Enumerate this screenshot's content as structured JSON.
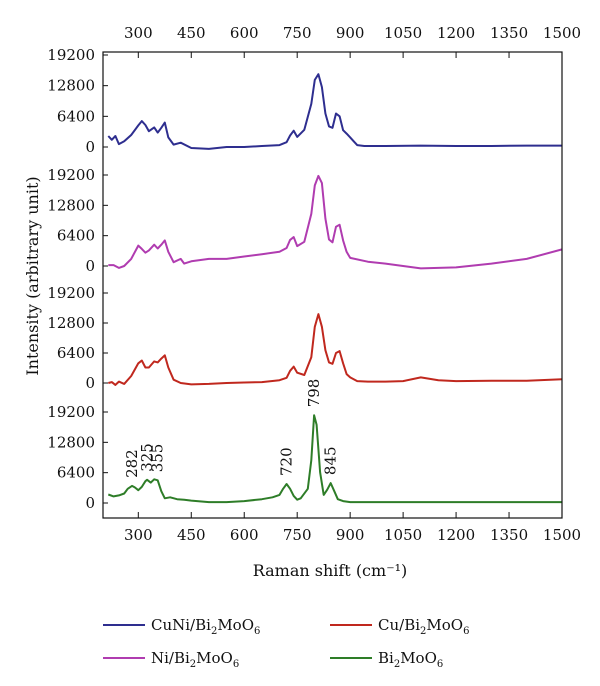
{
  "chart_data": {
    "type": "line",
    "xlabel": "Raman shift (cm⁻¹)",
    "ylabel": "Intensity (arbitrary unit)",
    "x_ticks": [
      300,
      450,
      600,
      750,
      900,
      1050,
      1200,
      1350,
      1500
    ],
    "top_x_ticks": [
      300,
      450,
      600,
      750,
      900,
      1050,
      1200,
      1350,
      1500
    ],
    "xlim": [
      200,
      1500
    ],
    "y_ticks": [
      0,
      6400,
      12800,
      19200
    ],
    "ylim": [
      -1500,
      21000
    ],
    "peak_labels": [
      {
        "x": 282,
        "text": "282"
      },
      {
        "x": 325,
        "text": "325"
      },
      {
        "x": 355,
        "text": "355"
      },
      {
        "x": 720,
        "text": "720"
      },
      {
        "x": 798,
        "text": "798"
      },
      {
        "x": 845,
        "text": "845"
      }
    ],
    "series": [
      {
        "key": "CuNi",
        "name": "CuNi/Bi2MoO6",
        "label_parts": [
          "CuNi/Bi",
          "2",
          "MoO",
          "6"
        ],
        "color": "#2e2e8f",
        "x": [
          215,
          225,
          235,
          245,
          260,
          280,
          300,
          310,
          320,
          330,
          345,
          355,
          365,
          375,
          385,
          400,
          420,
          450,
          500,
          550,
          600,
          650,
          700,
          720,
          730,
          740,
          750,
          770,
          790,
          800,
          810,
          820,
          830,
          840,
          850,
          860,
          870,
          880,
          890,
          900,
          910,
          920,
          940,
          1000,
          1100,
          1200,
          1300,
          1400,
          1500
        ],
        "y": [
          2300,
          1500,
          2300,
          600,
          1200,
          2500,
          4500,
          5400,
          4600,
          3300,
          4100,
          3000,
          4000,
          5100,
          2000,
          500,
          900,
          -200,
          -400,
          0,
          0,
          200,
          400,
          1000,
          2400,
          3400,
          2100,
          3600,
          9000,
          14000,
          15200,
          12500,
          7000,
          4300,
          4000,
          7000,
          6400,
          3500,
          2800,
          2000,
          1200,
          400,
          200,
          200,
          300,
          200,
          200,
          300,
          300
        ]
      },
      {
        "key": "Ni",
        "name": "Ni/Bi2MoO6",
        "label_parts": [
          "Ni/Bi",
          "2",
          "MoO",
          "6"
        ],
        "color": "#b03cb0",
        "x": [
          215,
          230,
          245,
          260,
          280,
          300,
          310,
          320,
          330,
          345,
          355,
          365,
          375,
          385,
          400,
          420,
          430,
          450,
          500,
          550,
          600,
          650,
          700,
          720,
          730,
          740,
          750,
          770,
          790,
          800,
          810,
          820,
          830,
          840,
          850,
          860,
          870,
          880,
          890,
          900,
          950,
          1000,
          1050,
          1100,
          1200,
          1300,
          1400,
          1500
        ],
        "y": [
          200,
          200,
          -400,
          0,
          1500,
          4300,
          3600,
          2800,
          3300,
          4500,
          3700,
          4500,
          5400,
          3000,
          800,
          1500,
          500,
          1000,
          1500,
          1500,
          2000,
          2500,
          3000,
          3800,
          5500,
          6100,
          4200,
          5100,
          11000,
          17000,
          19000,
          17500,
          10000,
          5600,
          5000,
          8300,
          8700,
          5400,
          3000,
          1700,
          900,
          500,
          0,
          -500,
          -300,
          500,
          1500,
          3500
        ]
      },
      {
        "key": "Cu",
        "name": "Cu/Bi2MoO6",
        "label_parts": [
          "Cu/Bi",
          "2",
          "MoO",
          "6"
        ],
        "color": "#c0281e",
        "x": [
          215,
          225,
          235,
          245,
          260,
          280,
          300,
          310,
          320,
          330,
          345,
          355,
          365,
          375,
          385,
          400,
          420,
          450,
          500,
          550,
          600,
          650,
          700,
          720,
          730,
          740,
          750,
          770,
          790,
          800,
          810,
          820,
          830,
          840,
          850,
          860,
          870,
          880,
          890,
          900,
          920,
          950,
          1000,
          1050,
          1100,
          1150,
          1200,
          1300,
          1400,
          1500
        ],
        "y": [
          0,
          200,
          -400,
          300,
          -200,
          1500,
          4200,
          4800,
          3300,
          3300,
          4600,
          4400,
          5200,
          5900,
          3300,
          700,
          0,
          -300,
          -200,
          0,
          100,
          200,
          600,
          1100,
          2600,
          3500,
          2200,
          1700,
          5500,
          12000,
          14700,
          12000,
          7000,
          4400,
          4100,
          6400,
          6800,
          4200,
          1900,
          1200,
          400,
          300,
          300,
          400,
          1200,
          600,
          400,
          500,
          500,
          800
        ]
      },
      {
        "key": "Bi",
        "name": "Bi2MoO6",
        "label_parts": [
          "Bi",
          "2",
          "MoO",
          "6"
        ],
        "color": "#2e7d28",
        "x": [
          215,
          230,
          245,
          260,
          270,
          282,
          290,
          300,
          310,
          320,
          325,
          335,
          345,
          355,
          365,
          375,
          390,
          410,
          430,
          450,
          500,
          550,
          600,
          650,
          680,
          700,
          710,
          720,
          730,
          740,
          750,
          760,
          780,
          790,
          798,
          805,
          815,
          825,
          835,
          845,
          855,
          865,
          880,
          900,
          950,
          1000,
          1100,
          1200,
          1300,
          1400,
          1500
        ],
        "y": [
          1800,
          1400,
          1600,
          2000,
          3000,
          3600,
          3300,
          2700,
          3400,
          4600,
          4900,
          4300,
          5000,
          4800,
          2500,
          1000,
          1200,
          800,
          700,
          500,
          200,
          200,
          400,
          800,
          1200,
          1700,
          3000,
          4000,
          3000,
          1500,
          700,
          1000,
          3000,
          9000,
          18500,
          16500,
          6500,
          1700,
          2800,
          4200,
          2500,
          800,
          400,
          200,
          200,
          200,
          200,
          200,
          200,
          200,
          200
        ]
      }
    ]
  }
}
